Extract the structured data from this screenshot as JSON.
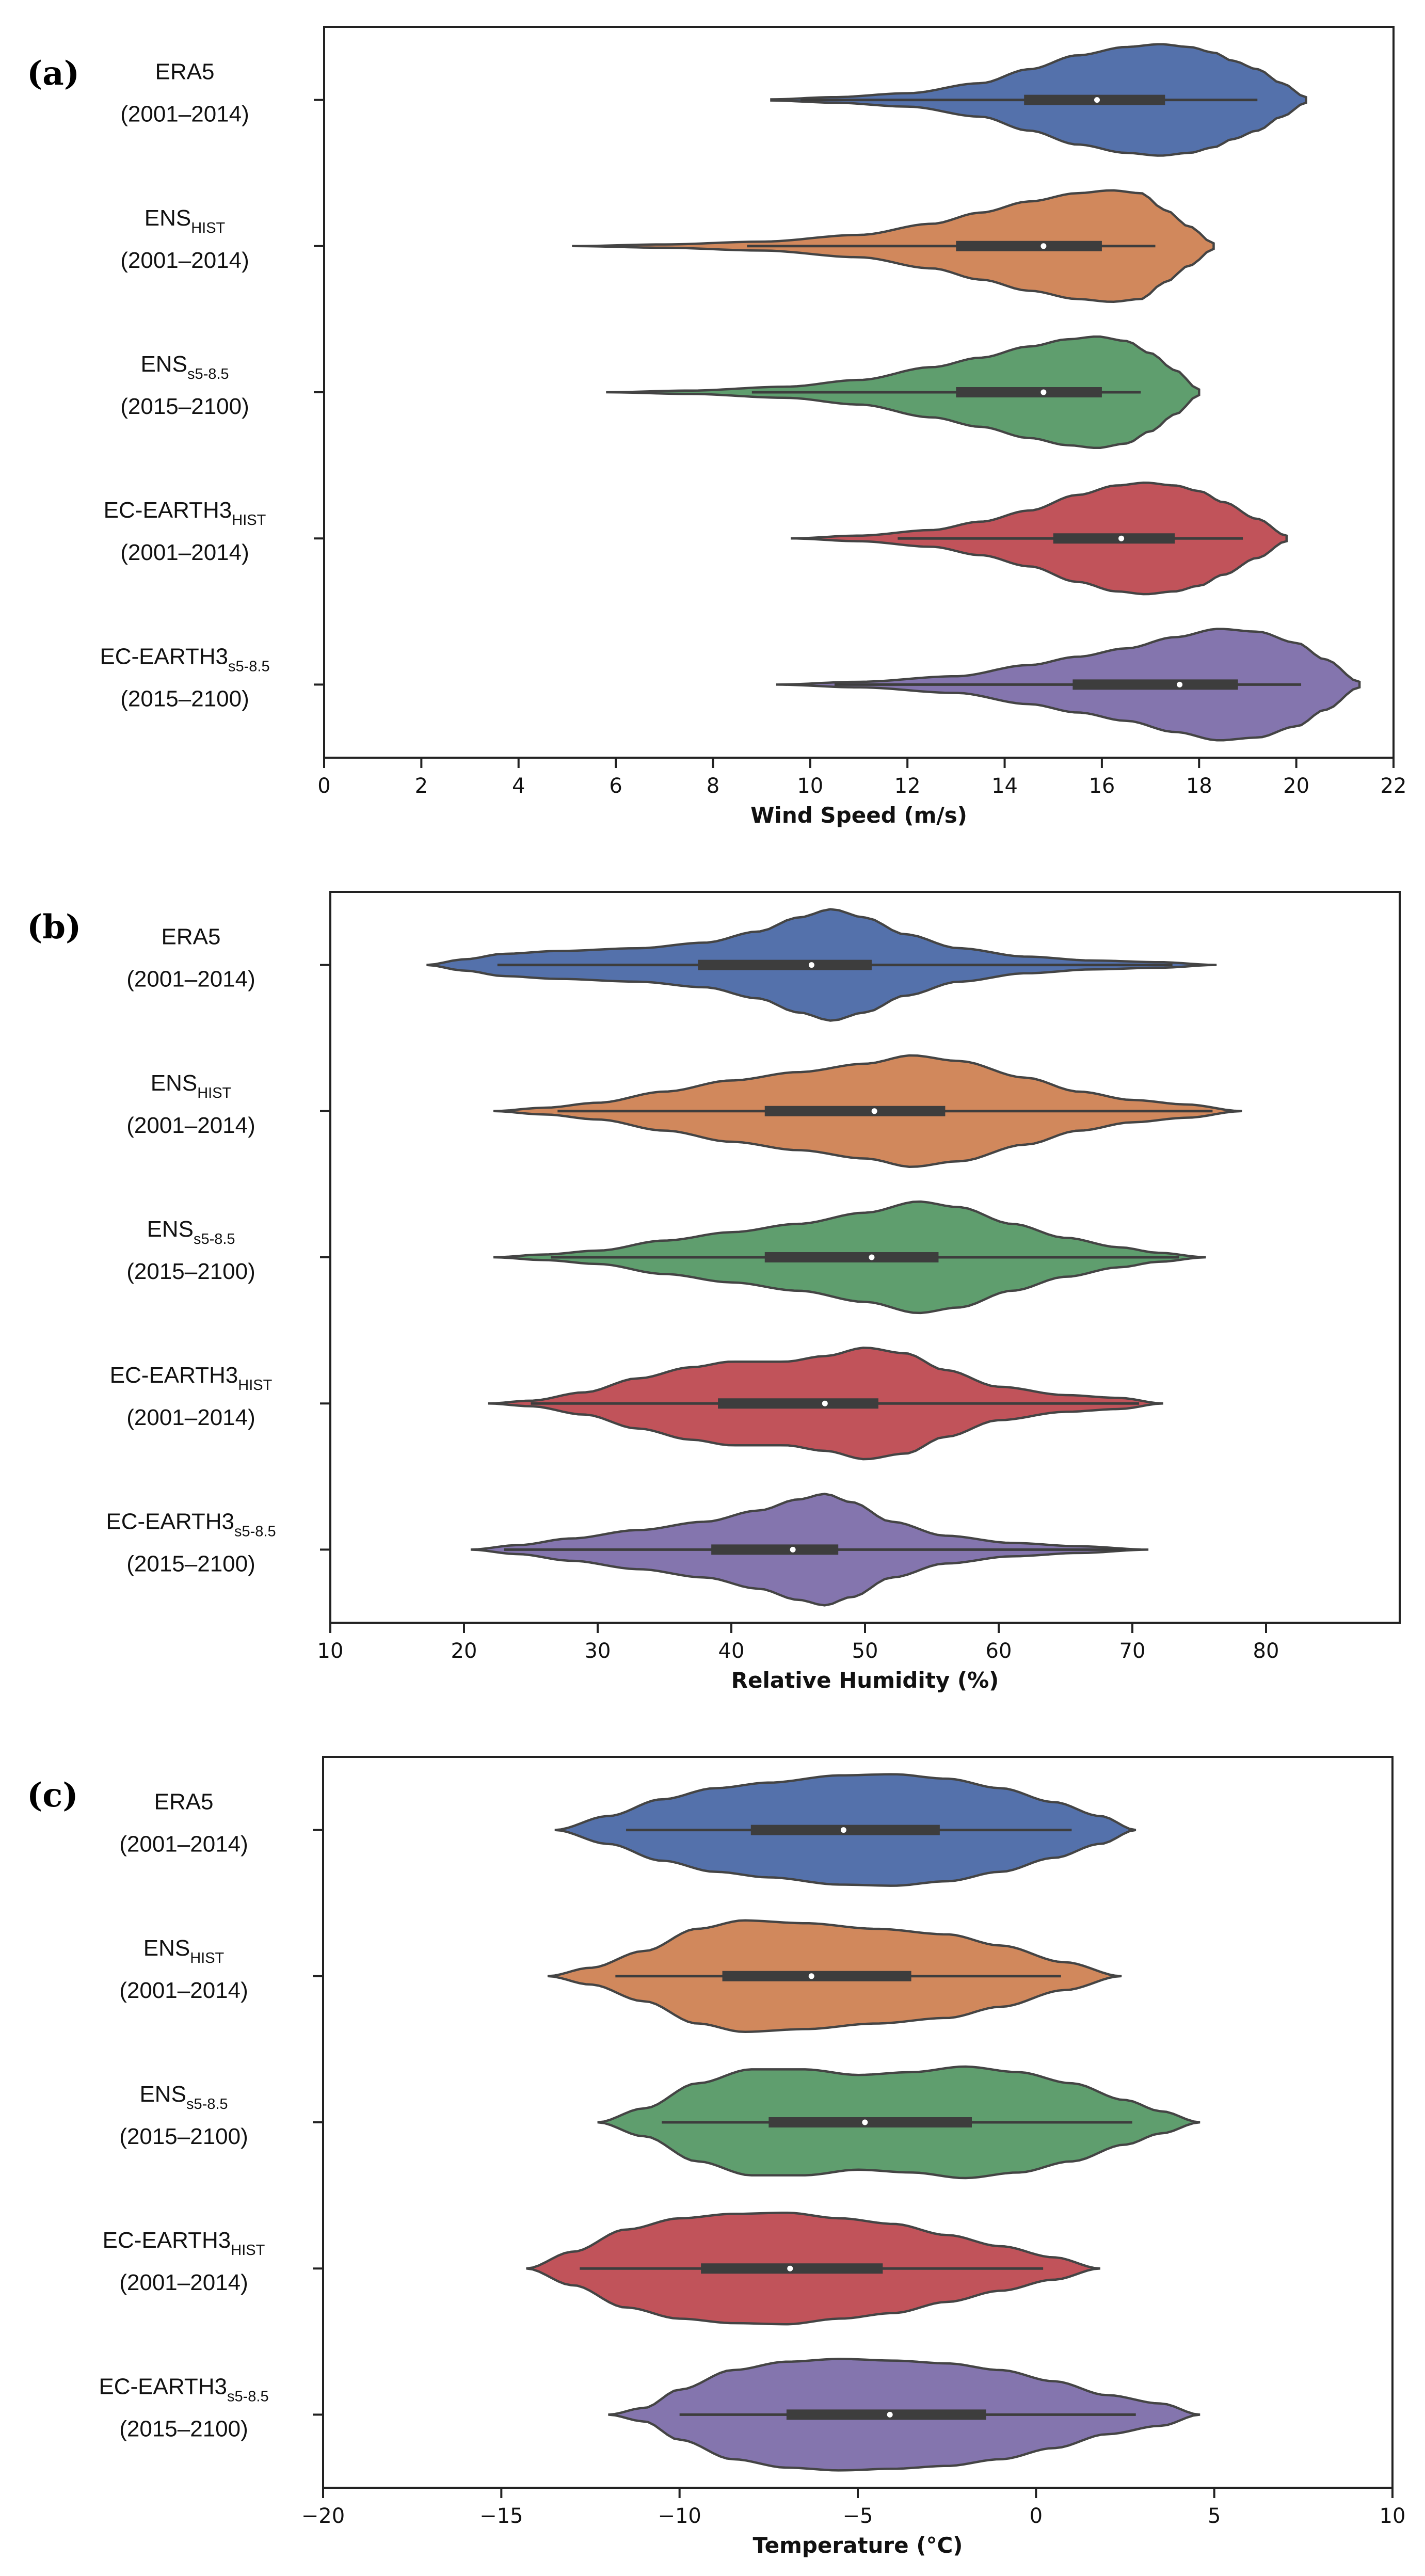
{
  "chart_data": [
    {
      "type": "violin",
      "panel_label": "(a)",
      "xlabel": "Wind Speed (m/s)",
      "xlim": [
        0,
        22
      ],
      "xticks": [
        0,
        2,
        4,
        6,
        8,
        10,
        12,
        14,
        16,
        18,
        20,
        22
      ],
      "categories": [
        {
          "name": "ERA5",
          "sub": "",
          "period": "(2001–2014)",
          "color": "#5471ab",
          "min": 9.2,
          "max": 20.2,
          "whisker_lo": 9.8,
          "whisker_hi": 19.2,
          "q1": 14.4,
          "median": 15.9,
          "q3": 17.3,
          "density": [
            [
              9.2,
              0.01
            ],
            [
              10.5,
              0.05
            ],
            [
              12,
              0.12
            ],
            [
              13.5,
              0.3
            ],
            [
              14.5,
              0.55
            ],
            [
              15.5,
              0.8
            ],
            [
              16.5,
              0.95
            ],
            [
              17.2,
              1.0
            ],
            [
              17.8,
              0.95
            ],
            [
              18.3,
              0.85
            ],
            [
              18.7,
              0.7
            ],
            [
              19.2,
              0.55
            ],
            [
              19.7,
              0.3
            ],
            [
              20.2,
              0.05
            ]
          ]
        },
        {
          "name": "ENS",
          "sub": "HIST",
          "period": "(2001–2014)",
          "color": "#d1885c",
          "min": 5.1,
          "max": 18.3,
          "whisker_lo": 8.7,
          "whisker_hi": 17.1,
          "q1": 13.0,
          "median": 14.8,
          "q3": 16.0,
          "density": [
            [
              5.1,
              0.0
            ],
            [
              7,
              0.03
            ],
            [
              9,
              0.08
            ],
            [
              11,
              0.2
            ],
            [
              12.5,
              0.4
            ],
            [
              13.5,
              0.6
            ],
            [
              14.5,
              0.8
            ],
            [
              15.5,
              0.95
            ],
            [
              16.2,
              1.0
            ],
            [
              16.8,
              0.95
            ],
            [
              17.3,
              0.65
            ],
            [
              17.8,
              0.35
            ],
            [
              18.3,
              0.05
            ]
          ]
        },
        {
          "name": "ENS",
          "sub": "s5-8.5",
          "period": "(2015–2100)",
          "color": "#5f9e6e",
          "min": 5.8,
          "max": 18.0,
          "whisker_lo": 8.8,
          "whisker_hi": 16.8,
          "q1": 13.0,
          "median": 14.8,
          "q3": 16.0,
          "density": [
            [
              5.8,
              0.0
            ],
            [
              7.5,
              0.03
            ],
            [
              9.5,
              0.1
            ],
            [
              11,
              0.22
            ],
            [
              12.5,
              0.45
            ],
            [
              13.5,
              0.62
            ],
            [
              14.5,
              0.82
            ],
            [
              15.3,
              0.95
            ],
            [
              15.9,
              1.0
            ],
            [
              16.5,
              0.92
            ],
            [
              17,
              0.7
            ],
            [
              17.5,
              0.4
            ],
            [
              18,
              0.05
            ]
          ]
        },
        {
          "name": "EC-EARTH3",
          "sub": "HIST",
          "period": "(2001–2014)",
          "color": "#c1535a",
          "min": 9.6,
          "max": 19.8,
          "whisker_lo": 11.8,
          "whisker_hi": 18.9,
          "q1": 15.0,
          "median": 16.4,
          "q3": 17.5,
          "density": [
            [
              9.6,
              0.0
            ],
            [
              11,
              0.05
            ],
            [
              12.5,
              0.15
            ],
            [
              13.5,
              0.3
            ],
            [
              14.5,
              0.5
            ],
            [
              15.5,
              0.78
            ],
            [
              16.3,
              0.95
            ],
            [
              16.9,
              1.0
            ],
            [
              17.5,
              0.95
            ],
            [
              18,
              0.85
            ],
            [
              18.5,
              0.65
            ],
            [
              19.2,
              0.35
            ],
            [
              19.8,
              0.05
            ]
          ]
        },
        {
          "name": "EC-EARTH3",
          "sub": "s5-8.5",
          "period": "(2015–2100)",
          "color": "#8475ae",
          "min": 9.3,
          "max": 21.3,
          "whisker_lo": 10.5,
          "whisker_hi": 20.1,
          "q1": 15.4,
          "median": 17.6,
          "q3": 18.8,
          "density": [
            [
              9.3,
              0.0
            ],
            [
              11,
              0.05
            ],
            [
              13,
              0.15
            ],
            [
              14.5,
              0.35
            ],
            [
              15.5,
              0.5
            ],
            [
              16.5,
              0.65
            ],
            [
              17.5,
              0.85
            ],
            [
              18.4,
              1.0
            ],
            [
              19.2,
              0.95
            ],
            [
              20,
              0.75
            ],
            [
              20.6,
              0.45
            ],
            [
              21.3,
              0.05
            ]
          ]
        }
      ]
    },
    {
      "type": "violin",
      "panel_label": "(b)",
      "xlabel": "Relative Humidity (%)",
      "xlim": [
        10,
        90
      ],
      "xticks": [
        10,
        20,
        30,
        40,
        50,
        60,
        70,
        80
      ],
      "categories": [
        {
          "name": "ERA5",
          "sub": "",
          "period": "(2001–2014)",
          "color": "#5471ab",
          "min": 17.2,
          "max": 76.3,
          "whisker_lo": 22.5,
          "whisker_hi": 73.0,
          "q1": 37.5,
          "median": 46.0,
          "q3": 50.5,
          "density": [
            [
              17.2,
              0.0
            ],
            [
              20,
              0.1
            ],
            [
              23,
              0.2
            ],
            [
              27,
              0.25
            ],
            [
              33,
              0.3
            ],
            [
              38,
              0.4
            ],
            [
              42,
              0.6
            ],
            [
              45,
              0.85
            ],
            [
              47.5,
              1.0
            ],
            [
              50,
              0.85
            ],
            [
              53,
              0.55
            ],
            [
              57,
              0.3
            ],
            [
              62,
              0.15
            ],
            [
              67,
              0.08
            ],
            [
              72,
              0.05
            ],
            [
              76.3,
              0.0
            ]
          ]
        },
        {
          "name": "ENS",
          "sub": "HIST",
          "period": "(2001–2014)",
          "color": "#d1885c",
          "min": 22.2,
          "max": 78.2,
          "whisker_lo": 27.0,
          "whisker_hi": 76.0,
          "q1": 42.5,
          "median": 50.7,
          "q3": 56.0,
          "density": [
            [
              22.2,
              0.0
            ],
            [
              26,
              0.06
            ],
            [
              30,
              0.15
            ],
            [
              35,
              0.35
            ],
            [
              40,
              0.55
            ],
            [
              45,
              0.7
            ],
            [
              50,
              0.85
            ],
            [
              53.5,
              1.0
            ],
            [
              57,
              0.9
            ],
            [
              62,
              0.6
            ],
            [
              66,
              0.35
            ],
            [
              70,
              0.2
            ],
            [
              74,
              0.12
            ],
            [
              78.2,
              0.0
            ]
          ]
        },
        {
          "name": "ENS",
          "sub": "s5-8.5",
          "period": "(2015–2100)",
          "color": "#5f9e6e",
          "min": 22.2,
          "max": 75.5,
          "whisker_lo": 26.5,
          "whisker_hi": 73.5,
          "q1": 42.5,
          "median": 50.5,
          "q3": 55.5,
          "density": [
            [
              22.2,
              0.0
            ],
            [
              26,
              0.05
            ],
            [
              30,
              0.12
            ],
            [
              35,
              0.3
            ],
            [
              40,
              0.45
            ],
            [
              45,
              0.6
            ],
            [
              50,
              0.8
            ],
            [
              54,
              1.0
            ],
            [
              57,
              0.9
            ],
            [
              61,
              0.6
            ],
            [
              65,
              0.35
            ],
            [
              69,
              0.18
            ],
            [
              72,
              0.08
            ],
            [
              75.5,
              0.0
            ]
          ]
        },
        {
          "name": "EC-EARTH3",
          "sub": "HIST",
          "period": "(2001–2014)",
          "color": "#c1535a",
          "min": 21.8,
          "max": 72.3,
          "whisker_lo": 25.0,
          "whisker_hi": 70.5,
          "q1": 39.0,
          "median": 47.0,
          "q3": 51.0,
          "density": [
            [
              21.8,
              0.0
            ],
            [
              25,
              0.05
            ],
            [
              29,
              0.2
            ],
            [
              33,
              0.45
            ],
            [
              37,
              0.65
            ],
            [
              40,
              0.75
            ],
            [
              44,
              0.75
            ],
            [
              47,
              0.85
            ],
            [
              50,
              1.0
            ],
            [
              53,
              0.9
            ],
            [
              56,
              0.6
            ],
            [
              60,
              0.3
            ],
            [
              65,
              0.15
            ],
            [
              69,
              0.1
            ],
            [
              72.3,
              0.0
            ]
          ]
        },
        {
          "name": "EC-EARTH3",
          "sub": "s5-8.5",
          "period": "(2015–2100)",
          "color": "#8475ae",
          "min": 20.5,
          "max": 71.2,
          "whisker_lo": 23.0,
          "whisker_hi": 69.5,
          "q1": 38.5,
          "median": 44.6,
          "q3": 48.0,
          "density": [
            [
              20.5,
              0.0
            ],
            [
              24,
              0.08
            ],
            [
              28,
              0.2
            ],
            [
              33,
              0.35
            ],
            [
              38,
              0.5
            ],
            [
              42,
              0.7
            ],
            [
              45,
              0.9
            ],
            [
              47,
              1.0
            ],
            [
              49,
              0.85
            ],
            [
              52,
              0.5
            ],
            [
              56,
              0.25
            ],
            [
              61,
              0.12
            ],
            [
              66,
              0.06
            ],
            [
              71.2,
              0.0
            ]
          ]
        }
      ]
    },
    {
      "type": "violin",
      "panel_label": "(c)",
      "xlabel": "Temperature (°C)",
      "xlim": [
        -20,
        10
      ],
      "xticks": [
        -20,
        -15,
        -10,
        -5,
        0,
        5,
        10
      ],
      "xtick_labels": [
        "−20",
        "−15",
        "−10",
        "−5",
        "0",
        "5",
        "10"
      ],
      "categories": [
        {
          "name": "ERA5",
          "sub": "",
          "period": "(2001–2014)",
          "color": "#5471ab",
          "min": -13.5,
          "max": 2.8,
          "whisker_lo": -11.5,
          "whisker_hi": 1.0,
          "q1": -8.0,
          "median": -5.4,
          "q3": -2.7,
          "density": [
            [
              -13.5,
              0.0
            ],
            [
              -12,
              0.25
            ],
            [
              -10.5,
              0.55
            ],
            [
              -9,
              0.75
            ],
            [
              -7.5,
              0.85
            ],
            [
              -5.5,
              0.98
            ],
            [
              -4,
              1.0
            ],
            [
              -2.5,
              0.92
            ],
            [
              -1,
              0.75
            ],
            [
              0.5,
              0.5
            ],
            [
              1.8,
              0.25
            ],
            [
              2.8,
              0.0
            ]
          ]
        },
        {
          "name": "ENS",
          "sub": "HIST",
          "period": "(2001–2014)",
          "color": "#d1885c",
          "min": -13.7,
          "max": 2.4,
          "whisker_lo": -11.8,
          "whisker_hi": 0.7,
          "q1": -8.8,
          "median": -6.3,
          "q3": -3.5,
          "density": [
            [
              -13.7,
              0.0
            ],
            [
              -12.5,
              0.15
            ],
            [
              -11,
              0.45
            ],
            [
              -9.5,
              0.85
            ],
            [
              -8.2,
              1.0
            ],
            [
              -6.5,
              0.95
            ],
            [
              -4.5,
              0.85
            ],
            [
              -2.5,
              0.75
            ],
            [
              -1,
              0.55
            ],
            [
              0.8,
              0.25
            ],
            [
              2.4,
              0.0
            ]
          ]
        },
        {
          "name": "ENS",
          "sub": "s5-8.5",
          "period": "(2015–2100)",
          "color": "#5f9e6e",
          "min": -12.3,
          "max": 4.6,
          "whisker_lo": -10.5,
          "whisker_hi": 2.7,
          "q1": -7.5,
          "median": -4.8,
          "q3": -1.8,
          "density": [
            [
              -12.3,
              0.0
            ],
            [
              -11,
              0.25
            ],
            [
              -9.5,
              0.7
            ],
            [
              -8,
              0.95
            ],
            [
              -6.5,
              0.95
            ],
            [
              -5,
              0.85
            ],
            [
              -3.5,
              0.9
            ],
            [
              -2,
              1.0
            ],
            [
              -0.5,
              0.9
            ],
            [
              1,
              0.7
            ],
            [
              2.5,
              0.4
            ],
            [
              3.5,
              0.2
            ],
            [
              4.6,
              0.0
            ]
          ]
        },
        {
          "name": "EC-EARTH3",
          "sub": "HIST",
          "period": "(2001–2014)",
          "color": "#c1535a",
          "min": -14.3,
          "max": 1.8,
          "whisker_lo": -12.8,
          "whisker_hi": 0.2,
          "q1": -9.4,
          "median": -6.9,
          "q3": -4.3,
          "density": [
            [
              -14.3,
              0.0
            ],
            [
              -13,
              0.3
            ],
            [
              -11.5,
              0.7
            ],
            [
              -10,
              0.9
            ],
            [
              -8.5,
              0.98
            ],
            [
              -7,
              1.0
            ],
            [
              -5.5,
              0.9
            ],
            [
              -4,
              0.8
            ],
            [
              -2.5,
              0.6
            ],
            [
              -1,
              0.4
            ],
            [
              0.5,
              0.2
            ],
            [
              1.8,
              0.0
            ]
          ]
        },
        {
          "name": "EC-EARTH3",
          "sub": "s5-8.5",
          "period": "(2015–2100)",
          "color": "#8475ae",
          "min": -12.0,
          "max": 4.6,
          "whisker_lo": -10.0,
          "whisker_hi": 2.8,
          "q1": -7.0,
          "median": -4.1,
          "q3": -1.4,
          "density": [
            [
              -12.0,
              0.0
            ],
            [
              -11,
              0.12
            ],
            [
              -10,
              0.45
            ],
            [
              -8.5,
              0.8
            ],
            [
              -7,
              0.95
            ],
            [
              -5.5,
              1.0
            ],
            [
              -4,
              0.97
            ],
            [
              -2.5,
              0.92
            ],
            [
              -1,
              0.8
            ],
            [
              0.5,
              0.6
            ],
            [
              2,
              0.35
            ],
            [
              3.5,
              0.2
            ],
            [
              4.6,
              0.0
            ]
          ]
        }
      ]
    }
  ]
}
